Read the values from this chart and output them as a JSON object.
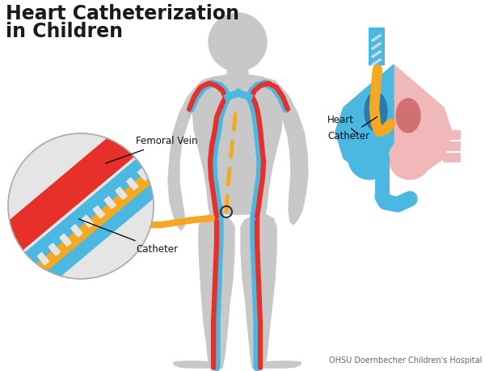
{
  "title_line1": "Heart Catheterization",
  "title_line2": "in Children",
  "title_fontsize": 17,
  "title_fontweight": "bold",
  "title_color": "#1a1a1a",
  "bg_color": "#ffffff",
  "body_color": "#c8c8c8",
  "vein_blue": "#4ab8e0",
  "vein_red": "#e8302a",
  "catheter_orange": "#f5a820",
  "heart_blue": "#4ab8e0",
  "heart_pink": "#f0b8b8",
  "heart_dark_red": "#c83030",
  "circle_bg": "#e5e5e5",
  "label_color": "#111111",
  "credit_text": "OHSU Doernbecher Children's Hospital",
  "credit_fontsize": 7,
  "credit_color": "#666666"
}
